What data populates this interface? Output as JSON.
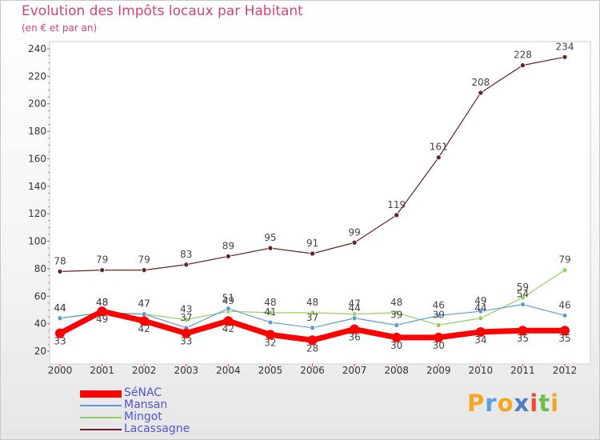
{
  "title": "Evolution des Impôts locaux par Habitant",
  "subtitle": "(en € et par an)",
  "logo": {
    "letters": [
      "P",
      "r",
      "o",
      "x",
      "i",
      "t",
      "i"
    ],
    "colors": [
      "#f5a623",
      "#5aa0d8",
      "#f5a623",
      "#4a7fc1",
      "#e84c3d",
      "#6cbf4a",
      "#f5a623"
    ]
  },
  "chart_data": {
    "type": "line",
    "title": "Evolution des Impôts locaux par Habitant",
    "subtitle": "(en € et par an)",
    "x": [
      "2000",
      "2001",
      "2002",
      "2003",
      "2004",
      "2005",
      "2006",
      "2007",
      "2008",
      "2009",
      "2010",
      "2011",
      "2012"
    ],
    "ylim": [
      20,
      240
    ],
    "yticks": [
      "20",
      "40",
      "60",
      "80",
      "100",
      "120",
      "140",
      "160",
      "180",
      "200",
      "220",
      "240"
    ],
    "grid": false,
    "legend_position": "bottom-left",
    "series": [
      {
        "name": "SéNAC",
        "color": "#ff0000",
        "values": [
          33,
          49,
          42,
          33,
          42,
          32,
          28,
          36,
          30,
          30,
          34,
          35,
          35
        ],
        "labels": [
          "33",
          "49",
          "42",
          "33",
          "42",
          "32",
          "28",
          "36",
          "30",
          "30",
          "34",
          "35",
          "35"
        ]
      },
      {
        "name": "Mansan",
        "color": "#5b9bd5",
        "values": [
          44,
          48,
          47,
          37,
          51,
          41,
          37,
          44,
          39,
          46,
          49,
          54,
          46
        ],
        "labels": [
          "44",
          "48",
          "47",
          "37",
          "51",
          "41",
          "37",
          "44",
          "39",
          "46",
          "49",
          "54",
          "46"
        ]
      },
      {
        "name": "Mingot",
        "color": "#90d060",
        "values": [
          44,
          48,
          47,
          43,
          49,
          48,
          48,
          47,
          48,
          39,
          44,
          59,
          79
        ],
        "labels": [
          "44",
          "48",
          "47",
          "43",
          "49",
          "48",
          "48",
          "47",
          "48",
          "39",
          "44",
          "59",
          "79"
        ]
      },
      {
        "name": "Lacassagne",
        "color": "#6b2026",
        "values": [
          78,
          79,
          79,
          83,
          89,
          95,
          91,
          99,
          119,
          161,
          208,
          228,
          234
        ],
        "labels": [
          "78",
          "79",
          "79",
          "83",
          "89",
          "95",
          "91",
          "99",
          "119",
          "161",
          "208",
          "228",
          "234"
        ]
      }
    ]
  }
}
